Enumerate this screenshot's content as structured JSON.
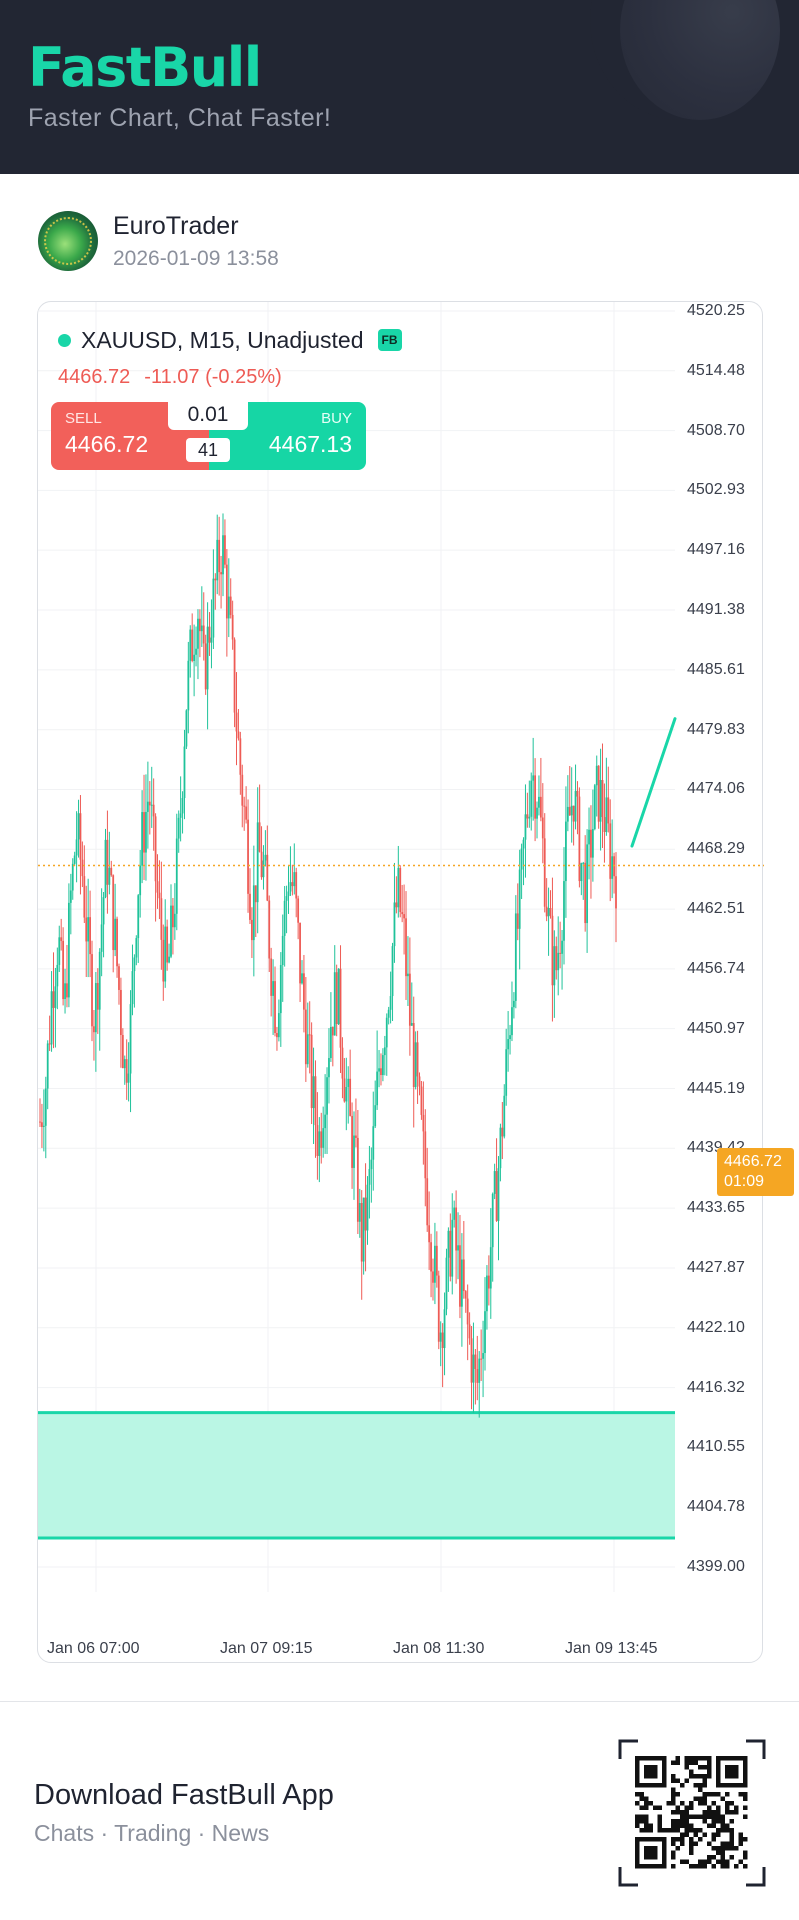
{
  "header": {
    "logo": "FastBull",
    "tagline": "Faster Chart, Chat Faster!"
  },
  "post": {
    "username": "EuroTrader",
    "timestamp": "2026-01-09 13:58"
  },
  "chart": {
    "symbol": "XAUUSD, M15, Unadjusted",
    "badge": "FB",
    "last_price": "4466.72",
    "change": "-11.07 (-0.25%)",
    "sell_label": "SELL",
    "sell_price": "4466.72",
    "buy_label": "BUY",
    "buy_price": "4467.13",
    "lot": "0.01",
    "spread": "41",
    "price_tag_value": "4466.72",
    "price_tag_timer": "01:09",
    "y_ticks": [
      "4520.25",
      "4514.48",
      "4508.70",
      "4502.93",
      "4497.16",
      "4491.38",
      "4485.61",
      "4479.83",
      "4474.06",
      "4468.29",
      "4462.51",
      "4456.74",
      "4450.97",
      "4445.19",
      "4439.42",
      "4433.65",
      "4427.87",
      "4422.10",
      "4416.32",
      "4410.55",
      "4404.78",
      "4399.00"
    ],
    "x_ticks": [
      "Jan 06 07:00",
      "Jan 07 09:15",
      "Jan 08 11:30",
      "Jan 09 13:45"
    ],
    "colors": {
      "up": "#1fc29a",
      "down": "#ee5b55",
      "zone": "#b6f5e3",
      "zone_border": "#19d6a8",
      "price_line": "#f5a623"
    }
  },
  "chart_data": {
    "type": "candlestick",
    "title": "XAUUSD, M15, Unadjusted",
    "ylim": [
      4399.0,
      4520.25
    ],
    "y_scale": "linear",
    "grid": true,
    "current_price": 4466.72,
    "x_tick_labels": [
      "Jan 06 07:00",
      "Jan 07 09:15",
      "Jan 08 11:30",
      "Jan 09 13:45"
    ],
    "price_path": [
      4442,
      4446,
      4455,
      4460,
      4452,
      4463,
      4470,
      4466,
      4458,
      4452,
      4460,
      4468,
      4462,
      4455,
      4447,
      4452,
      4464,
      4470,
      4474,
      4466,
      4460,
      4456,
      4462,
      4470,
      4482,
      4488,
      4492,
      4485,
      4490,
      4494,
      4498,
      4492,
      4484,
      4476,
      4470,
      4462,
      4468,
      4466,
      4458,
      4452,
      4460,
      4466,
      4464,
      4456,
      4450,
      4444,
      4440,
      4446,
      4452,
      4455,
      4448,
      4442,
      4438,
      4430,
      4434,
      4440,
      4448,
      4452,
      4458,
      4464,
      4460,
      4452,
      4446,
      4440,
      4434,
      4428,
      4422,
      4426,
      4432,
      4428,
      4424,
      4420,
      4416,
      4422,
      4428,
      4434,
      4440,
      4448,
      4456,
      4462,
      4470,
      4476,
      4474,
      4468,
      4460,
      4456,
      4462,
      4470,
      4474,
      4468,
      4464,
      4470,
      4474,
      4472,
      4468,
      4466
    ],
    "trend_line": {
      "from": 4468.6,
      "to": 4480.9
    },
    "zone": {
      "top": 4413.9,
      "bottom": 4401.8
    }
  },
  "footer": {
    "title": "Download FastBull App",
    "subtitle": "Chats · Trading · News"
  }
}
